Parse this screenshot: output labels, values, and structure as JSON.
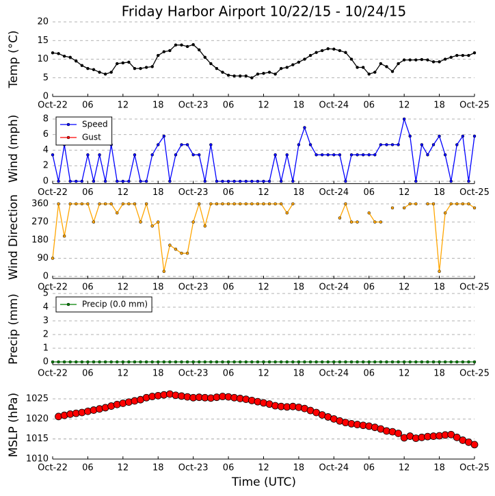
{
  "chart_data": [
    {
      "type": "line",
      "title": "Friday Harbor Airport 10/22/15 - 10/24/15",
      "ylabel": "Temp (°C)",
      "xlim": [
        0,
        72
      ],
      "xticks": [
        {
          "value": 0,
          "label": "Oct-22"
        },
        {
          "value": 6,
          "label": "06"
        },
        {
          "value": 12,
          "label": "12"
        },
        {
          "value": 18,
          "label": "18"
        },
        {
          "value": 24,
          "label": "Oct-23"
        },
        {
          "value": 30,
          "label": "06"
        },
        {
          "value": 36,
          "label": "12"
        },
        {
          "value": 42,
          "label": "18"
        },
        {
          "value": 48,
          "label": "Oct-24"
        },
        {
          "value": 54,
          "label": "06"
        },
        {
          "value": 60,
          "label": "12"
        },
        {
          "value": 66,
          "label": "18"
        },
        {
          "value": 72,
          "label": "Oct-25"
        }
      ],
      "ylim": [
        0,
        20
      ],
      "yticks": [
        0,
        5,
        10,
        15,
        20
      ],
      "grid": true,
      "x": [
        0,
        1,
        2,
        3,
        4,
        5,
        6,
        7,
        8,
        9,
        10,
        11,
        12,
        13,
        14,
        15,
        16,
        17,
        18,
        19,
        20,
        21,
        22,
        23,
        24,
        25,
        26,
        27,
        28,
        29,
        30,
        31,
        32,
        33,
        34,
        35,
        36,
        37,
        38,
        39,
        40,
        41,
        42,
        43,
        44,
        45,
        46,
        47,
        48,
        49,
        50,
        51,
        52,
        53,
        54,
        55,
        56,
        57,
        58,
        59,
        60,
        61,
        62,
        63,
        64,
        65,
        66,
        67,
        68,
        69,
        70,
        71,
        72
      ],
      "series": [
        {
          "color": "#000000",
          "values": [
            11.7,
            11.5,
            10.8,
            10.5,
            9.5,
            8.3,
            7.5,
            7.2,
            6.5,
            6,
            6.5,
            8.8,
            9,
            9.2,
            7.5,
            7.5,
            7.8,
            8,
            11,
            12,
            12.3,
            13.8,
            13.8,
            13.4,
            13.9,
            12.5,
            10.5,
            8.8,
            7.5,
            6.5,
            5.7,
            5.5,
            5.5,
            5.5,
            5,
            6,
            6.2,
            6.5,
            6,
            7.5,
            7.8,
            8.5,
            9.2,
            10,
            11,
            11.8,
            12.3,
            12.8,
            12.7,
            12.3,
            11.8,
            10,
            7.8,
            7.8,
            6,
            6.5,
            8.8,
            8,
            6.7,
            8.8,
            9.8,
            9.8,
            9.8,
            9.9,
            9.8,
            9.3,
            9.3,
            10,
            10.5,
            11,
            11,
            11,
            11.7
          ]
        }
      ]
    },
    {
      "type": "line",
      "ylabel": "Wind (mph)",
      "xlim": [
        0,
        72
      ],
      "xticks": [
        {
          "value": 0,
          "label": "Oct-22"
        },
        {
          "value": 6,
          "label": "06"
        },
        {
          "value": 12,
          "label": "12"
        },
        {
          "value": 18,
          "label": "18"
        },
        {
          "value": 24,
          "label": "Oct-23"
        },
        {
          "value": 30,
          "label": "06"
        },
        {
          "value": 36,
          "label": "12"
        },
        {
          "value": 42,
          "label": "18"
        },
        {
          "value": 48,
          "label": "Oct-24"
        },
        {
          "value": 54,
          "label": "06"
        },
        {
          "value": 60,
          "label": "12"
        },
        {
          "value": 66,
          "label": "18"
        },
        {
          "value": 72,
          "label": "Oct-25"
        }
      ],
      "ylim": [
        -0.3,
        8.7
      ],
      "yticks": [
        0,
        2,
        4,
        6,
        8
      ],
      "grid": true,
      "legend": "upper left",
      "x": [
        0,
        1,
        2,
        3,
        4,
        5,
        6,
        7,
        8,
        9,
        10,
        11,
        12,
        13,
        14,
        15,
        16,
        17,
        18,
        19,
        20,
        21,
        22,
        23,
        24,
        25,
        26,
        27,
        28,
        29,
        30,
        31,
        32,
        33,
        34,
        35,
        36,
        37,
        38,
        39,
        40,
        41,
        42,
        43,
        44,
        45,
        46,
        47,
        48,
        49,
        50,
        51,
        52,
        53,
        54,
        55,
        56,
        57,
        58,
        59,
        60,
        61,
        62,
        63,
        64,
        65,
        66,
        67,
        68,
        69,
        70,
        71,
        72
      ],
      "series": [
        {
          "name": "Speed",
          "color": "#0000ff",
          "values": [
            3.4,
            0,
            4.7,
            0,
            0,
            0,
            3.4,
            0,
            3.4,
            0,
            4.7,
            0,
            0,
            0,
            3.4,
            0,
            0,
            3.4,
            4.7,
            5.8,
            0,
            3.4,
            4.7,
            4.7,
            3.4,
            3.4,
            0,
            4.7,
            0,
            0,
            0,
            0,
            0,
            0,
            0,
            0,
            0,
            0,
            3.4,
            0,
            3.4,
            0,
            4.7,
            6.9,
            4.7,
            3.4,
            3.4,
            3.4,
            3.4,
            3.4,
            0,
            3.4,
            3.4,
            3.4,
            3.4,
            3.4,
            4.7,
            4.7,
            4.7,
            4.7,
            8,
            5.8,
            0,
            4.7,
            3.4,
            4.7,
            5.8,
            3.4,
            0,
            4.7,
            5.8,
            0,
            5.8
          ]
        },
        {
          "name": "Gust",
          "color": "#ff0000",
          "values": [
            null,
            null,
            null,
            null,
            null,
            null,
            null,
            null,
            null,
            null,
            null,
            null,
            null,
            null,
            null,
            null,
            null,
            null,
            null,
            null,
            null,
            null,
            null,
            null,
            null,
            null,
            null,
            null,
            null,
            null,
            null,
            null,
            null,
            null,
            null,
            null,
            null,
            null,
            null,
            null,
            null,
            null,
            null,
            null,
            null,
            null,
            null,
            null,
            null,
            null,
            null,
            null,
            null,
            null,
            null,
            null,
            null,
            null,
            null,
            null,
            null,
            null,
            null,
            null,
            null,
            null,
            null,
            null,
            null,
            null,
            null,
            null,
            null
          ]
        }
      ]
    },
    {
      "type": "line",
      "ylabel": "Wind Direction",
      "xlim": [
        0,
        72
      ],
      "xticks": [
        {
          "value": 0,
          "label": "Oct-22"
        },
        {
          "value": 6,
          "label": "06"
        },
        {
          "value": 12,
          "label": "12"
        },
        {
          "value": 18,
          "label": "18"
        },
        {
          "value": 24,
          "label": "Oct-23"
        },
        {
          "value": 30,
          "label": "06"
        },
        {
          "value": 36,
          "label": "12"
        },
        {
          "value": 42,
          "label": "18"
        },
        {
          "value": 48,
          "label": "Oct-24"
        },
        {
          "value": 54,
          "label": "06"
        },
        {
          "value": 60,
          "label": "12"
        },
        {
          "value": 66,
          "label": "18"
        },
        {
          "value": 72,
          "label": "Oct-25"
        }
      ],
      "ylim": [
        -10,
        400
      ],
      "yticks": [
        0,
        90,
        180,
        270,
        360
      ],
      "grid": true,
      "x": [
        0,
        1,
        2,
        3,
        4,
        5,
        6,
        7,
        8,
        9,
        10,
        11,
        12,
        13,
        14,
        15,
        16,
        17,
        18,
        19,
        20,
        21,
        22,
        23,
        24,
        25,
        26,
        27,
        28,
        29,
        30,
        31,
        32,
        33,
        34,
        35,
        36,
        37,
        38,
        39,
        40,
        41,
        42,
        43,
        44,
        45,
        46,
        47,
        48,
        49,
        50,
        51,
        52,
        53,
        54,
        55,
        56,
        57,
        58,
        59,
        60,
        61,
        62,
        63,
        64,
        65,
        66,
        67,
        68,
        69,
        70,
        71,
        72
      ],
      "series": [
        {
          "color": "#ffa500",
          "values": [
            90,
            360,
            200,
            360,
            360,
            360,
            360,
            270,
            360,
            360,
            360,
            315,
            360,
            360,
            360,
            270,
            360,
            250,
            270,
            25,
            155,
            135,
            115,
            115,
            270,
            360,
            250,
            360,
            360,
            360,
            360,
            360,
            360,
            360,
            360,
            360,
            360,
            360,
            360,
            360,
            315,
            360,
            null,
            null,
            null,
            null,
            null,
            null,
            null,
            290,
            360,
            270,
            270,
            null,
            315,
            270,
            270,
            null,
            340,
            null,
            340,
            360,
            360,
            null,
            360,
            360,
            25,
            315,
            360,
            360,
            360,
            360,
            340
          ]
        }
      ]
    },
    {
      "type": "line",
      "ylabel": "Precip (mm)",
      "xlim": [
        0,
        72
      ],
      "xticks": [
        {
          "value": 0,
          "label": "Oct-22"
        },
        {
          "value": 6,
          "label": "06"
        },
        {
          "value": 12,
          "label": "12"
        },
        {
          "value": 18,
          "label": "18"
        },
        {
          "value": 24,
          "label": "Oct-23"
        },
        {
          "value": 30,
          "label": "06"
        },
        {
          "value": 36,
          "label": "12"
        },
        {
          "value": 42,
          "label": "18"
        },
        {
          "value": 48,
          "label": "Oct-24"
        },
        {
          "value": 54,
          "label": "06"
        },
        {
          "value": 60,
          "label": "12"
        },
        {
          "value": 66,
          "label": "18"
        },
        {
          "value": 72,
          "label": "Oct-25"
        }
      ],
      "ylim": [
        -0.2,
        5
      ],
      "yticks": [
        0,
        1,
        2,
        3,
        4,
        5
      ],
      "grid": true,
      "legend": "upper left",
      "x": [
        0,
        1,
        2,
        3,
        4,
        5,
        6,
        7,
        8,
        9,
        10,
        11,
        12,
        13,
        14,
        15,
        16,
        17,
        18,
        19,
        20,
        21,
        22,
        23,
        24,
        25,
        26,
        27,
        28,
        29,
        30,
        31,
        32,
        33,
        34,
        35,
        36,
        37,
        38,
        39,
        40,
        41,
        42,
        43,
        44,
        45,
        46,
        47,
        48,
        49,
        50,
        51,
        52,
        53,
        54,
        55,
        56,
        57,
        58,
        59,
        60,
        61,
        62,
        63,
        64,
        65,
        66,
        67,
        68,
        69,
        70,
        71,
        72
      ],
      "series": [
        {
          "name": "Precip (0.0 mm)",
          "color": "#008000",
          "values": [
            0,
            0,
            0,
            0,
            0,
            0,
            0,
            0,
            0,
            0,
            0,
            0,
            0,
            0,
            0,
            0,
            0,
            0,
            0,
            0,
            0,
            0,
            0,
            0,
            0,
            0,
            0,
            0,
            0,
            0,
            0,
            0,
            0,
            0,
            0,
            0,
            0,
            0,
            0,
            0,
            0,
            0,
            0,
            0,
            0,
            0,
            0,
            0,
            0,
            0,
            0,
            0,
            0,
            0,
            0,
            0,
            0,
            0,
            0,
            0,
            0,
            0,
            0,
            0,
            0,
            0,
            0,
            0,
            0,
            0,
            0,
            0,
            0
          ]
        }
      ]
    },
    {
      "type": "scatter",
      "ylabel": "MSLP (hPa)",
      "xlabel": "Time (UTC)",
      "xlim": [
        0,
        72
      ],
      "xticks": [
        {
          "value": 0,
          "label": "Oct-22"
        },
        {
          "value": 6,
          "label": "06"
        },
        {
          "value": 12,
          "label": "12"
        },
        {
          "value": 18,
          "label": "18"
        },
        {
          "value": 24,
          "label": "Oct-23"
        },
        {
          "value": 30,
          "label": "06"
        },
        {
          "value": 36,
          "label": "12"
        },
        {
          "value": 42,
          "label": "18"
        },
        {
          "value": 48,
          "label": "Oct-24"
        },
        {
          "value": 54,
          "label": "06"
        },
        {
          "value": 60,
          "label": "12"
        },
        {
          "value": 66,
          "label": "18"
        },
        {
          "value": 72,
          "label": "Oct-25"
        }
      ],
      "ylim": [
        1010,
        1027
      ],
      "yticks": [
        1010,
        1015,
        1020,
        1025
      ],
      "grid": true,
      "x": [
        0,
        1,
        2,
        3,
        4,
        5,
        6,
        7,
        8,
        9,
        10,
        11,
        12,
        13,
        14,
        15,
        16,
        17,
        18,
        19,
        20,
        21,
        22,
        23,
        24,
        25,
        26,
        27,
        28,
        29,
        30,
        31,
        32,
        33,
        34,
        35,
        36,
        37,
        38,
        39,
        40,
        41,
        42,
        43,
        44,
        45,
        46,
        47,
        48,
        49,
        50,
        51,
        52,
        53,
        54,
        55,
        56,
        57,
        58,
        59,
        60,
        61,
        62,
        63,
        64,
        65,
        66,
        67,
        68,
        69,
        70,
        71,
        72
      ],
      "series": [
        {
          "color": "#ff0000",
          "values": [
            null,
            1020.6,
            1020.9,
            1021.2,
            1021.4,
            1021.6,
            1021.9,
            1022.2,
            1022.5,
            1022.8,
            1023.2,
            1023.6,
            1023.9,
            1024.2,
            1024.5,
            1024.8,
            1025.3,
            1025.6,
            1025.8,
            1026,
            1026.2,
            1025.9,
            1025.7,
            1025.5,
            1025.3,
            1025.4,
            1025.3,
            1025.2,
            1025.4,
            1025.6,
            1025.5,
            1025.3,
            1025.1,
            1024.9,
            1024.6,
            1024.3,
            1024,
            1023.7,
            1023.3,
            1023.1,
            1023,
            1023.1,
            1022.9,
            1022.6,
            1022.1,
            1021.6,
            1021,
            1020.5,
            1020,
            1019.5,
            1019.1,
            1018.8,
            1018.6,
            1018.4,
            1018.2,
            1017.9,
            1017.5,
            1017,
            1016.8,
            1016.4,
            1015.3,
            1015.7,
            1015.2,
            1015.4,
            1015.6,
            1015.7,
            1015.8,
            1016,
            1016.1,
            1015.4,
            1014.7,
            1014.2,
            1013.6
          ]
        }
      ]
    }
  ]
}
